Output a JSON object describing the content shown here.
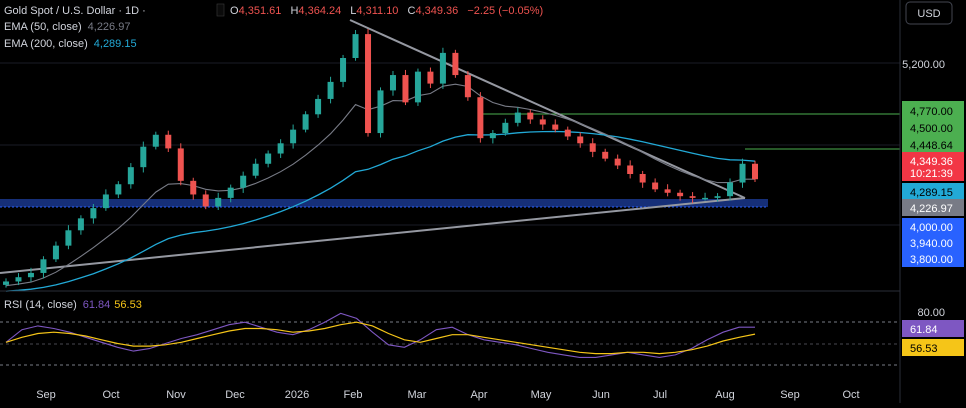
{
  "header": {
    "symbol": "Gold Spot / U.S. Dollar · 1D ·",
    "ohlc": [
      {
        "key": "O",
        "value": "4,351.61"
      },
      {
        "key": "H",
        "value": "4,364.24"
      },
      {
        "key": "L",
        "value": "4,311.10"
      },
      {
        "key": "C",
        "value": "4,349.36"
      }
    ],
    "change": "−2.25 (−0.05%)",
    "ema50_label": "EMA (50, close)",
    "ema50_value": "4,226.97",
    "ema200_label": "EMA (200, close)",
    "ema200_value": "4,289.15",
    "currency_button": "USD"
  },
  "colors": {
    "background": "#000000",
    "up": "#26a69a",
    "down": "#ef5350",
    "ema50": "#787b86",
    "ema200": "#22a9d6",
    "trendline": "#9598a1",
    "resistance": "#4caf50",
    "support_zone": "#1e3fa0",
    "rsi": "#7e57c2",
    "rsi_ma": "#f5c518"
  },
  "chart_data": [
    {
      "type": "candlestick",
      "title": "Gold Spot / U.S. Dollar · 1D",
      "x_ticks": [
        "Sep",
        "Oct",
        "Nov",
        "Dec",
        "2026",
        "Feb",
        "Mar",
        "Apr",
        "May",
        "Jun",
        "Jul",
        "Aug",
        "Sep",
        "Oct"
      ],
      "ylim": [
        3700,
        5400
      ],
      "price_axis_ticks": [
        "5,200.00",
        "4,500.00",
        "4,000.00",
        "3,940.00",
        "3,800.00"
      ],
      "candles_close": [
        3750,
        3775,
        3800,
        3880,
        3960,
        4050,
        4120,
        4180,
        4260,
        4320,
        4420,
        4540,
        4610,
        4530,
        4340,
        4260,
        4190,
        4240,
        4300,
        4370,
        4440,
        4500,
        4560,
        4640,
        4730,
        4820,
        4920,
        5060,
        5200,
        4620,
        4870,
        4960,
        4800,
        4980,
        4910,
        5090,
        4960,
        4830,
        4590,
        4620,
        4680,
        4740,
        4700,
        4670,
        4640,
        4600,
        4560,
        4510,
        4470,
        4430,
        4380,
        4330,
        4290,
        4270,
        4250,
        4240,
        4240,
        4250,
        4330,
        4440,
        4349.36
      ],
      "last_close": "4,349.36",
      "countdown": "10:21:39",
      "series": [
        {
          "name": "EMA (50, close)",
          "last": "4,226.97"
        },
        {
          "name": "EMA (200, close)",
          "last": "4,289.15"
        }
      ],
      "levels": [
        {
          "label": "4,770.00",
          "value": 4770,
          "color": "#4caf50"
        },
        {
          "label": "4,448.64",
          "value": 4448.64,
          "color": "#4caf50"
        }
      ],
      "support_zone": [
        4200,
        4225
      ],
      "trendlines": [
        "descending from Feb high",
        "ascending from Sep low"
      ]
    },
    {
      "type": "line",
      "title": "RSI (14, close)",
      "x_ticks": [
        "Sep",
        "Oct",
        "Nov",
        "Dec",
        "2026",
        "Feb",
        "Mar",
        "Apr",
        "May",
        "Jun",
        "Jul",
        "Aug",
        "Sep",
        "Oct"
      ],
      "ylim": [
        20,
        90
      ],
      "axis_ticks": [
        "80.00"
      ],
      "band": [
        30,
        70
      ],
      "series": [
        {
          "name": "RSI",
          "last": "61.84"
        },
        {
          "name": "RSI MA",
          "last": "56.53"
        }
      ],
      "rsi_values": [
        50,
        60,
        63,
        61,
        58,
        54,
        50,
        46,
        43,
        45,
        49,
        53,
        56,
        60,
        64,
        66,
        62,
        58,
        56,
        60,
        66,
        73,
        69,
        58,
        48,
        46,
        52,
        60,
        62,
        56,
        52,
        50,
        48,
        45,
        42,
        40,
        38,
        38,
        40,
        42,
        40,
        38,
        40,
        45,
        52,
        58,
        62,
        62
      ],
      "rsi_ma_values": [
        50,
        54,
        57,
        58,
        57,
        55,
        52,
        49,
        47,
        47,
        48,
        50,
        53,
        56,
        59,
        61,
        61,
        60,
        58,
        59,
        61,
        64,
        66,
        63,
        57,
        52,
        50,
        53,
        56,
        56,
        54,
        52,
        50,
        48,
        46,
        44,
        42,
        41,
        41,
        42,
        42,
        41,
        42,
        44,
        47,
        51,
        54,
        56.5
      ]
    }
  ]
}
